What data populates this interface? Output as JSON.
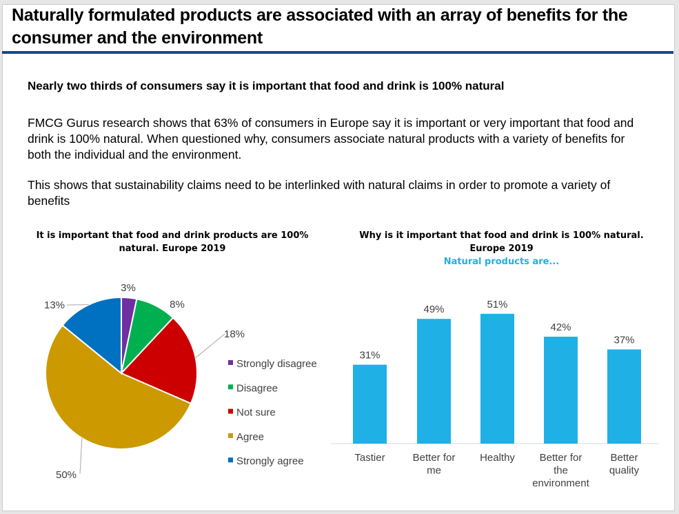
{
  "title": "Naturally formulated products are associated with an array of benefits for the consumer and the environment",
  "subtitle": "Nearly two thirds of consumers say it is important that food and drink is 100% natural",
  "paragraph1": "FMCG Gurus research shows that 63% of consumers in Europe say it is important or very important that food and drink is 100% natural. When questioned why, consumers associate natural products with a variety of benefits for both the individual and the environment.",
  "paragraph2": "This shows that sustainability claims need to be interlinked with natural claims in order to promote a variety of benefits",
  "colors": {
    "rule": "#0b4a99",
    "bar": "#1fb0e6"
  },
  "chart_data": [
    {
      "type": "pie",
      "title": "It is important that food and drink products are 100% natural. Europe 2019",
      "categories": [
        "Strongly disagree",
        "Disagree",
        "Not sure",
        "Agree",
        "Strongly agree"
      ],
      "values": [
        3,
        8,
        18,
        50,
        13
      ],
      "labels": [
        "3%",
        "8%",
        "18%",
        "50%",
        "13%"
      ],
      "colors": [
        "#7030a0",
        "#00b050",
        "#cc0000",
        "#cc9900",
        "#0070c0"
      ],
      "legend": "right"
    },
    {
      "type": "bar",
      "title": "Why is it important that food and drink is 100% natural. Europe 2019",
      "subtitle": "Natural products are...",
      "categories": [
        "Tastier",
        "Better for me",
        "Healthy",
        "Better for the environment",
        "Better quality"
      ],
      "values": [
        31,
        49,
        51,
        42,
        37
      ],
      "labels": [
        "31%",
        "49%",
        "51%",
        "42%",
        "37%"
      ],
      "color": "#1fb0e6",
      "grid": false
    }
  ]
}
